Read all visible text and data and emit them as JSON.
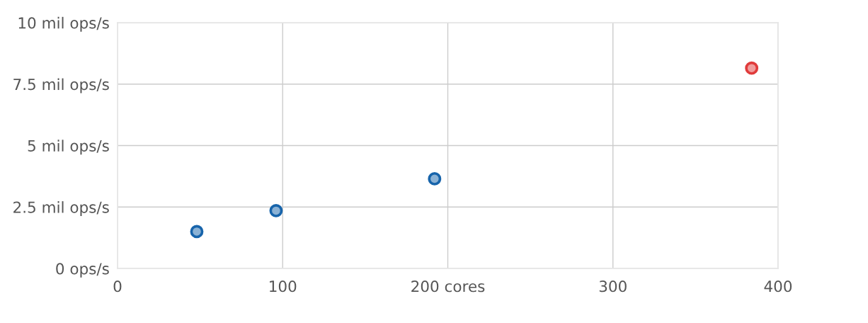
{
  "chart_data": {
    "type": "scatter",
    "xlim": [
      0,
      400
    ],
    "xticks": [
      0,
      100,
      {
        "value": 200,
        "label": "200 cores"
      },
      300,
      400
    ],
    "ylim": [
      0,
      10
    ],
    "yticks": [
      {
        "value": 0,
        "label": "0 ops/s"
      },
      {
        "value": 2.5,
        "label": "2.5 mil ops/s"
      },
      {
        "value": 5,
        "label": "5 mil ops/s"
      },
      {
        "value": 7.5,
        "label": "7.5 mil ops/s"
      },
      {
        "value": 10,
        "label": "10 mil ops/s"
      }
    ],
    "grid": true,
    "marker": "circle",
    "series": [
      {
        "color": "#1764ab",
        "x": [
          48,
          96,
          192
        ],
        "values": [
          1.5,
          2.35,
          3.65
        ]
      },
      {
        "color": "#e03b3b",
        "x": [
          384
        ],
        "values": [
          8.15
        ]
      }
    ]
  }
}
